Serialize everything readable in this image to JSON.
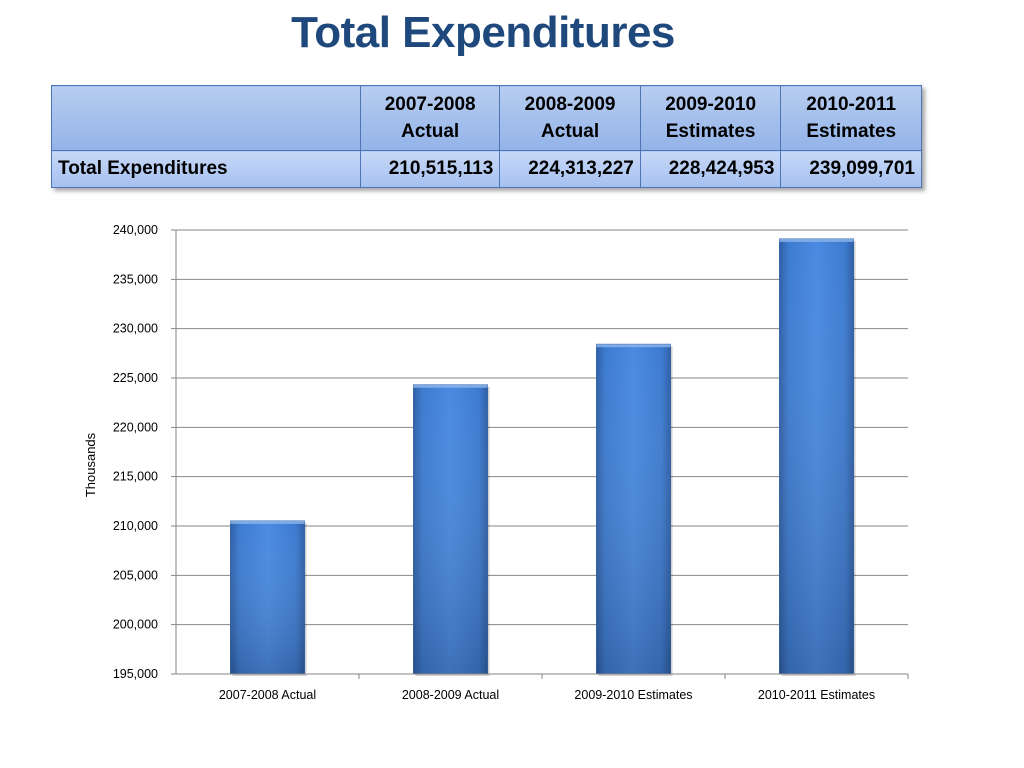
{
  "page": {
    "title": "Total Expenditures"
  },
  "summary_table": {
    "columns": [
      "",
      "2007-2008\nActual",
      "2008-2009\nActual",
      "2009-2010\nEstimates",
      "2010-2011\nEstimates"
    ],
    "rows": [
      {
        "label": "Total Expenditures",
        "values": [
          "210,515,113",
          "224,313,227",
          "228,424,953",
          "239,099,701"
        ]
      }
    ]
  },
  "chart_data": {
    "type": "bar",
    "categories": [
      "2007-2008 Actual",
      "2008-2009 Actual",
      "2009-2010 Estimates",
      "2010-2011 Estimates"
    ],
    "values": [
      210515,
      224313,
      228425,
      239100
    ],
    "ylabel": "Thousands",
    "xlabel": "",
    "ylim": [
      195000,
      240000
    ],
    "yticks": [
      "195,000",
      "200,000",
      "205,000",
      "210,000",
      "215,000",
      "220,000",
      "225,000",
      "230,000",
      "235,000",
      "240,000"
    ],
    "grid": true,
    "colors": {
      "bar": "#3c78c8",
      "bar_dark": "#2f5fa5",
      "grid": "#868686"
    }
  }
}
